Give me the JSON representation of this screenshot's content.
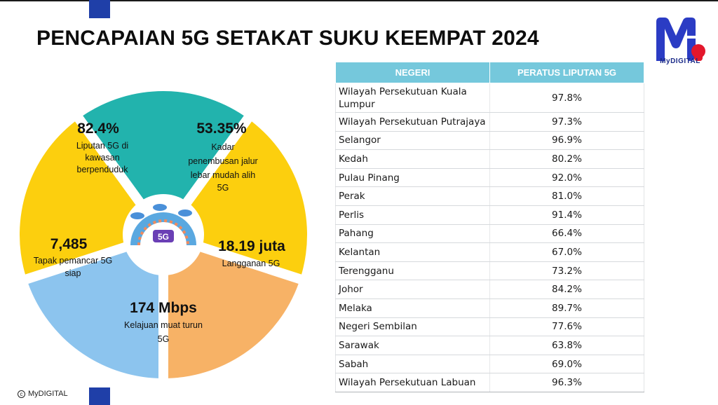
{
  "title": "PENCAPAIAN 5G SETAKAT SUKU KEEMPAT 2024",
  "logo": {
    "text": "MyDIGITAL",
    "icon": "mydigital-logo",
    "colors": {
      "blue": "#2b3cc4",
      "red": "#e3172c"
    }
  },
  "copyright": "MyDIGITAL",
  "segments": [
    {
      "value": "82.4%",
      "lines": [
        "Liputan 5G di",
        "kawasan",
        "berpenduduk"
      ],
      "color": "#fccf0e"
    },
    {
      "value": "53.35%",
      "lines": [
        "Kadar",
        "penembusan jalur",
        "lebar mudah alih",
        "5G"
      ],
      "color": "#22b3ad"
    },
    {
      "value": "18.19 juta",
      "lines": [
        "Langganan 5G"
      ],
      "color": "#fccf0e"
    },
    {
      "value": "174 Mbps",
      "lines": [
        "Kelajuan muat turun",
        "5G"
      ],
      "color": "#f7b266"
    },
    {
      "value": "7,485",
      "lines": [
        "Tapak pemancar 5G",
        "siap"
      ],
      "color": "#8cc4ee"
    }
  ],
  "center_badge": "5G",
  "table": {
    "headers": [
      "NEGERI",
      "PERATUS LIPUTAN 5G"
    ],
    "rows": [
      {
        "state": "Wilayah Persekutuan Kuala Lumpur",
        "pct": "97.8%"
      },
      {
        "state": "Wilayah Persekutuan Putrajaya",
        "pct": "97.3%"
      },
      {
        "state": "Selangor",
        "pct": "96.9%"
      },
      {
        "state": "Kedah",
        "pct": "80.2%"
      },
      {
        "state": "Pulau Pinang",
        "pct": "92.0%"
      },
      {
        "state": "Perak",
        "pct": "81.0%"
      },
      {
        "state": "Perlis",
        "pct": "91.4%"
      },
      {
        "state": "Pahang",
        "pct": "66.4%"
      },
      {
        "state": "Kelantan",
        "pct": "67.0%"
      },
      {
        "state": "Terengganu",
        "pct": "73.2%"
      },
      {
        "state": "Johor",
        "pct": "84.2%"
      },
      {
        "state": "Melaka",
        "pct": "89.7%"
      },
      {
        "state": "Negeri Sembilan",
        "pct": "77.6%"
      },
      {
        "state": "Sarawak",
        "pct": "63.8%"
      },
      {
        "state": "Sabah",
        "pct": "69.0%"
      },
      {
        "state": "Wilayah Persekutuan Labuan",
        "pct": "96.3%"
      }
    ]
  }
}
